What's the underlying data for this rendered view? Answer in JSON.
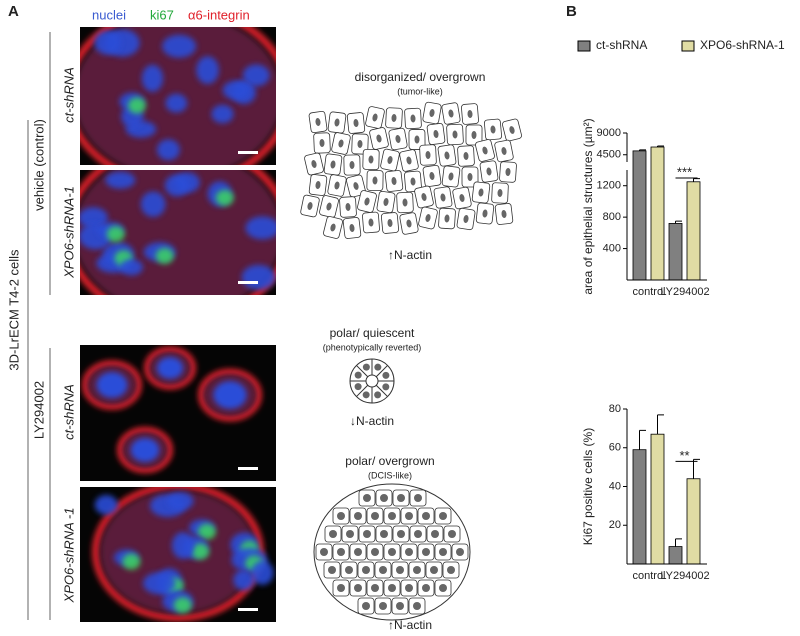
{
  "panel_a": {
    "label": "A",
    "channels": [
      "nuclei",
      "ki67",
      "α6-integrin"
    ],
    "rows": [
      "ct-shRNA",
      "XPO6-shRNA-1",
      "ct-shRNA",
      "XPO6-shRNA -1"
    ],
    "groups": [
      "vehicle (control)",
      "LY294002"
    ],
    "cell_line": "3D-LrECM  T4-2 cells",
    "diagrams": [
      {
        "title": "disorganized/ overgrown",
        "subtitle": "(tumor-like)",
        "marker": "↑N-actin"
      },
      {
        "title": "polar/ quiescent",
        "subtitle": "(phenotypically reverted)",
        "marker": "↓N-actin"
      },
      {
        "title": "polar/ overgrown",
        "subtitle": "(DCIS-like)",
        "marker": "↑N-actin"
      }
    ]
  },
  "panel_b": {
    "label": "B"
  },
  "chart_data": [
    {
      "type": "bar",
      "ylabel": "area of epithelial structures (µm²)",
      "categories": [
        "control",
        "LY294002"
      ],
      "series": [
        {
          "name": "ct-shRNA",
          "color": "#808080",
          "values": [
            5300,
            720
          ],
          "errors": [
            200,
            30
          ]
        },
        {
          "name": "XPO6-shRNA-1",
          "color": "#e0dca4",
          "values": [
            6100,
            1250
          ],
          "errors": [
            200,
            40
          ]
        }
      ],
      "ylim_segments": [
        [
          0,
          1400
        ],
        [
          3000,
          9000
        ]
      ],
      "yticks": [
        400,
        800,
        1200,
        4500,
        9000
      ],
      "significance": "***"
    },
    {
      "type": "bar",
      "ylabel": "Ki67 positive cells (%)",
      "categories": [
        "control",
        "LY294002"
      ],
      "series": [
        {
          "color": "#808080",
          "values": [
            59,
            9
          ],
          "errors": [
            10,
            4
          ]
        },
        {
          "color": "#e0dca4",
          "values": [
            67,
            44
          ],
          "errors": [
            10,
            10
          ]
        }
      ],
      "ylim": [
        0,
        80
      ],
      "yticks": [
        20,
        40,
        60,
        80
      ],
      "significance": "**"
    }
  ]
}
